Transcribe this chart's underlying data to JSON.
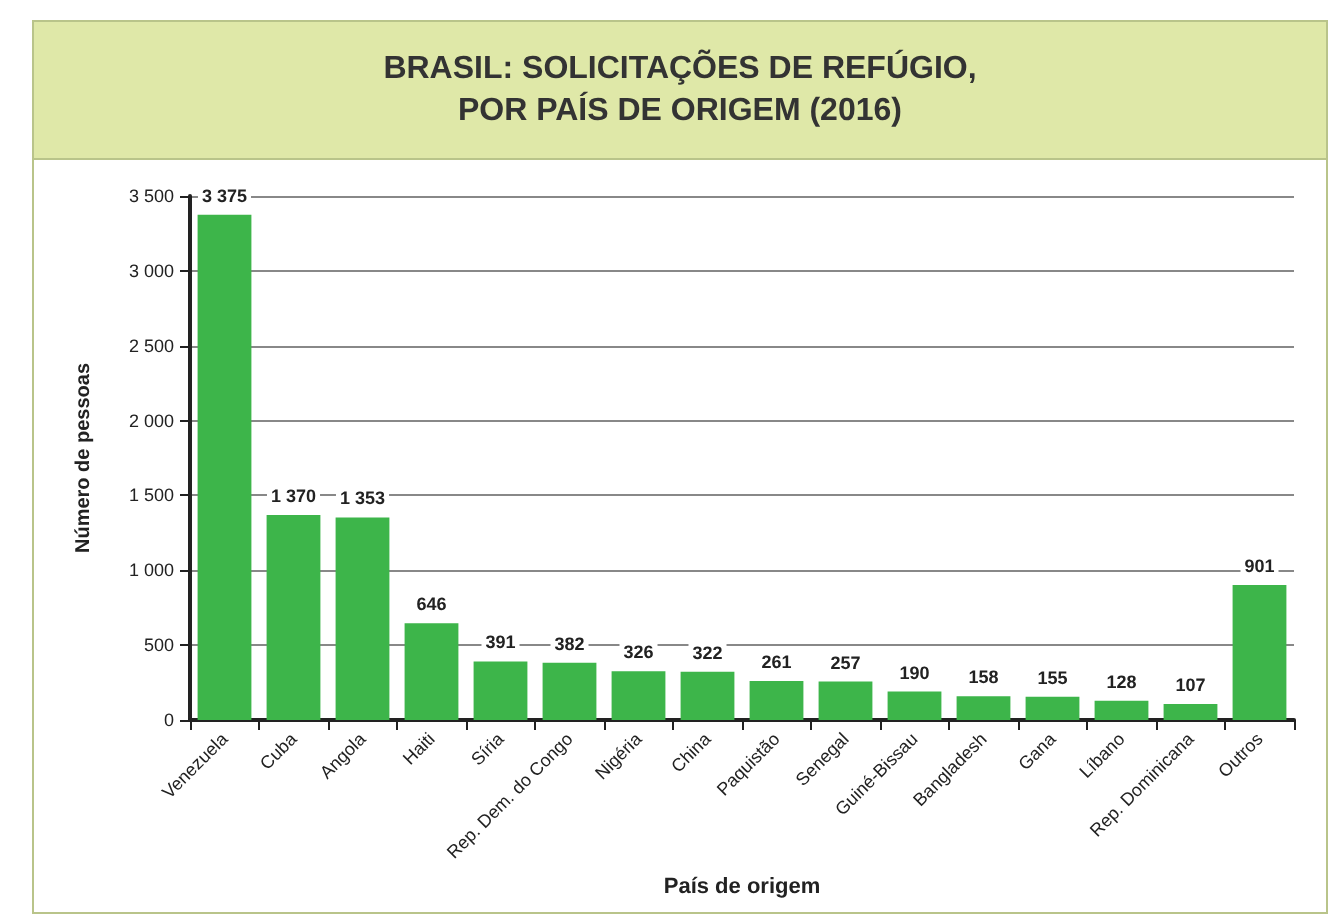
{
  "chart_data": {
    "type": "bar",
    "title": "BRASIL: SOLICITAÇÕES DE REFÚGIO,\nPOR PAÍS DE ORIGEM (2016)",
    "xlabel": "País de origem",
    "ylabel": "Número de pessoas",
    "categories": [
      "Venezuela",
      "Cuba",
      "Angola",
      "Haiti",
      "Síria",
      "Rep. Dem. do Congo",
      "Nigéria",
      "China",
      "Paquistão",
      "Senegal",
      "Guiné-Bissau",
      "Bangladesh",
      "Gana",
      "Líbano",
      "Rep. Dominicana",
      "Outros"
    ],
    "values": [
      3375,
      1370,
      1353,
      646,
      391,
      382,
      326,
      322,
      261,
      257,
      190,
      158,
      155,
      128,
      107,
      901
    ],
    "value_labels": [
      "3 375",
      "1 370",
      "1 353",
      "646",
      "391",
      "382",
      "326",
      "322",
      "261",
      "257",
      "190",
      "158",
      "155",
      "128",
      "107",
      "901"
    ],
    "color": "#3db54a",
    "ylim": [
      0,
      3500
    ],
    "yticks": [
      {
        "value": 0,
        "label": "0"
      },
      {
        "value": 500,
        "label": "500"
      },
      {
        "value": 1000,
        "label": "1 000"
      },
      {
        "value": 1500,
        "label": "1 500"
      },
      {
        "value": 2000,
        "label": "2 000"
      },
      {
        "value": 2500,
        "label": "2 500"
      },
      {
        "value": 3000,
        "label": "3 000"
      },
      {
        "value": 3500,
        "label": "3 500"
      }
    ],
    "grid": "y"
  }
}
